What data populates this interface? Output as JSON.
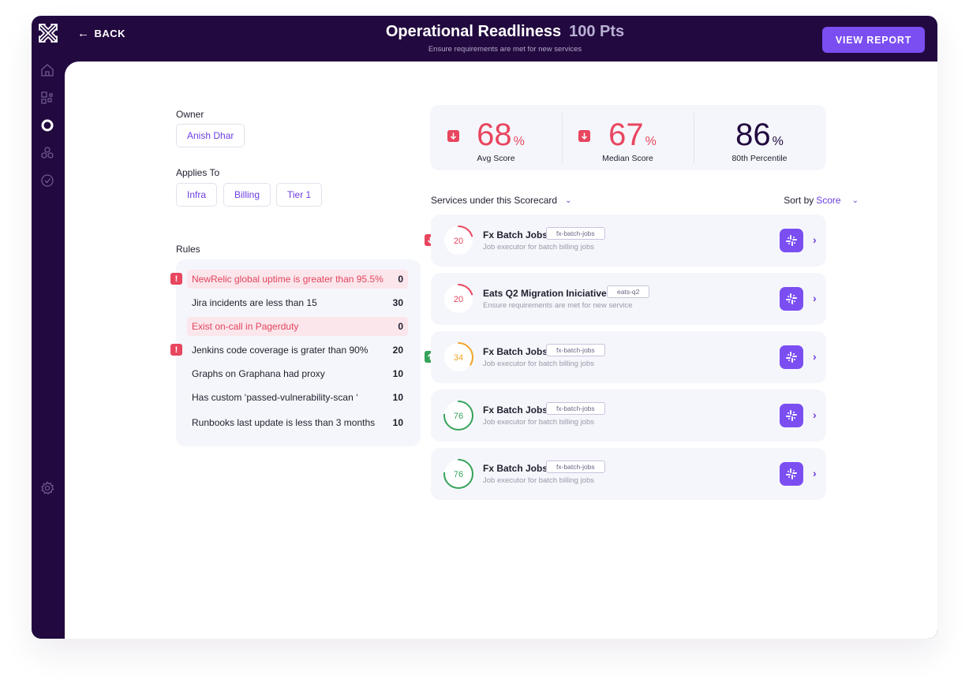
{
  "topbar": {
    "back_label": "BACK",
    "title": "Operational Readliness",
    "points": "100 Pts",
    "subtitle": "Ensure requirements are met for new services",
    "view_report_label": "VIEW REPORT"
  },
  "sidebar": {
    "items": [
      {
        "icon": "home-icon"
      },
      {
        "icon": "catalog-icon"
      },
      {
        "icon": "scorecard-icon",
        "active": true
      },
      {
        "icon": "teams-icon"
      },
      {
        "icon": "check-circle-icon"
      },
      {
        "icon": "gear-icon"
      }
    ]
  },
  "owner": {
    "label": "Owner",
    "value": "Anish Dhar"
  },
  "applies_to": {
    "label": "Applies To",
    "tags": [
      "Infra",
      "Billing",
      "Tier 1"
    ]
  },
  "rules": {
    "label": "Rules",
    "items": [
      {
        "text": "NewRelic global uptime is greater than 95.5%",
        "points": "0",
        "status": "fail",
        "alert": true
      },
      {
        "text": "Jira incidents are less than 15",
        "points": "30",
        "status": "pass",
        "alert": false
      },
      {
        "text": "Exist on-call in Pagerduty",
        "points": "0",
        "status": "fail",
        "alert": false
      },
      {
        "text": "Jenkins code coverage is grater than 90%",
        "points": "20",
        "status": "pass",
        "alert": true
      },
      {
        "text": "Graphs on Graphana had proxy",
        "points": "10",
        "status": "pass",
        "alert": false
      },
      {
        "text": "Has custom ‘passed-vulnerability-scan ‘",
        "points": "10",
        "status": "pass",
        "alert": false
      },
      {
        "text": "Runbooks last update is less than 3 months",
        "points": "10",
        "status": "pass",
        "alert": false
      }
    ]
  },
  "stats": [
    {
      "value": "68",
      "unit": "%",
      "label": "Avg Score",
      "trend": "down",
      "color": "#e8465f"
    },
    {
      "value": "67",
      "unit": "%",
      "label": "Median Score",
      "trend": "down",
      "color": "#e8465f"
    },
    {
      "value": "86",
      "unit": "%",
      "label": "80th Percentile",
      "trend": "none",
      "color": "#22093f"
    }
  ],
  "services": {
    "header_label": "Services under this Scorecard",
    "sort_prefix": "Sort by",
    "sort_value": "Score",
    "items": [
      {
        "score": "20",
        "score_fraction": 0.2,
        "color": "#e8465f",
        "name": "Fx Batch Jobs",
        "tag": "fx-batch-jobs",
        "desc": "Job executor for batch billing jobs",
        "trend": "down"
      },
      {
        "score": "20",
        "score_fraction": 0.2,
        "color": "#e8465f",
        "name": "Eats Q2 Migration Iniciative",
        "tag": "eats-q2",
        "desc": "Ensure requirements are met for new service",
        "trend": "none"
      },
      {
        "score": "34",
        "score_fraction": 0.34,
        "color": "#f2a325",
        "name": "Fx Batch Jobs",
        "tag": "fx-batch-jobs",
        "desc": "Job executor for batch billing jobs",
        "trend": "up"
      },
      {
        "score": "76",
        "score_fraction": 0.76,
        "color": "#36a35a",
        "name": "Fx Batch Jobs",
        "tag": "fx-batch-jobs",
        "desc": "Job executor for batch billing jobs",
        "trend": "none"
      },
      {
        "score": "76",
        "score_fraction": 0.76,
        "color": "#36a35a",
        "name": "Fx Batch Jobs",
        "tag": "fx-batch-jobs",
        "desc": "Job executor for batch billing jobs",
        "trend": "none"
      }
    ]
  },
  "colors": {
    "brand_dark": "#22093f",
    "accent": "#7b4ef2",
    "fail": "#e8465f",
    "pass": "#36a35a",
    "warn": "#f2a325"
  }
}
